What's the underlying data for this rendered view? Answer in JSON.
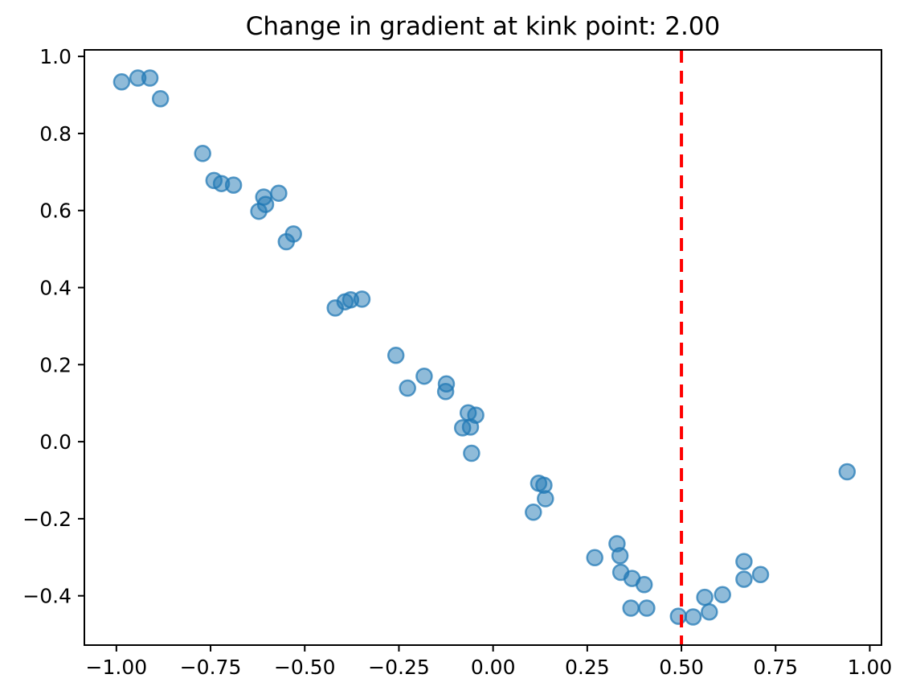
{
  "figure": {
    "background": "#ffffff"
  },
  "chart_data": {
    "type": "scatter",
    "title": "Change in gradient at kink point: 2.00",
    "xlabel": "",
    "ylabel": "",
    "xlim": [
      -1.085,
      1.031
    ],
    "ylim": [
      -0.528,
      1.017
    ],
    "grid": false,
    "legend": null,
    "xticks": {
      "values": [
        -1.0,
        -0.75,
        -0.5,
        -0.25,
        0.0,
        0.25,
        0.5,
        0.75,
        1.0
      ],
      "labels": [
        "−1.00",
        "−0.75",
        "−0.50",
        "−0.25",
        "0.00",
        "0.25",
        "0.50",
        "0.75",
        "1.00"
      ]
    },
    "yticks": {
      "values": [
        -0.4,
        -0.2,
        0.0,
        0.2,
        0.4,
        0.6,
        0.8,
        1.0
      ],
      "labels": [
        "−0.4",
        "−0.2",
        "0.0",
        "0.2",
        "0.4",
        "0.6",
        "0.8",
        "1.0"
      ]
    },
    "marker": {
      "shape": "circle",
      "color": "#1f77b4",
      "fill_opacity": 0.5,
      "edge_opacity": 0.72
    },
    "vline": {
      "x": 0.5,
      "color": "#ff0000",
      "style": "dashed"
    },
    "axis_color": "#000000",
    "points": [
      [
        -0.986,
        0.934
      ],
      [
        -0.943,
        0.944
      ],
      [
        -0.911,
        0.944
      ],
      [
        -0.883,
        0.89
      ],
      [
        -0.771,
        0.748
      ],
      [
        -0.741,
        0.678
      ],
      [
        -0.721,
        0.67
      ],
      [
        -0.689,
        0.666
      ],
      [
        -0.622,
        0.598
      ],
      [
        -0.609,
        0.635
      ],
      [
        -0.604,
        0.616
      ],
      [
        -0.569,
        0.645
      ],
      [
        -0.549,
        0.519
      ],
      [
        -0.53,
        0.539
      ],
      [
        -0.419,
        0.347
      ],
      [
        -0.393,
        0.363
      ],
      [
        -0.378,
        0.368
      ],
      [
        -0.348,
        0.37
      ],
      [
        -0.258,
        0.224
      ],
      [
        -0.227,
        0.139
      ],
      [
        -0.183,
        0.17
      ],
      [
        -0.126,
        0.13
      ],
      [
        -0.124,
        0.15
      ],
      [
        -0.081,
        0.036
      ],
      [
        -0.066,
        0.075
      ],
      [
        -0.06,
        0.038
      ],
      [
        -0.057,
        -0.03
      ],
      [
        -0.046,
        0.069
      ],
      [
        0.107,
        -0.183
      ],
      [
        0.121,
        -0.108
      ],
      [
        0.135,
        -0.113
      ],
      [
        0.139,
        -0.148
      ],
      [
        0.27,
        -0.301
      ],
      [
        0.329,
        -0.265
      ],
      [
        0.337,
        -0.296
      ],
      [
        0.339,
        -0.339
      ],
      [
        0.369,
        -0.355
      ],
      [
        0.366,
        -0.432
      ],
      [
        0.401,
        -0.371
      ],
      [
        0.408,
        -0.432
      ],
      [
        0.492,
        -0.453
      ],
      [
        0.531,
        -0.455
      ],
      [
        0.562,
        -0.404
      ],
      [
        0.574,
        -0.442
      ],
      [
        0.609,
        -0.397
      ],
      [
        0.666,
        -0.311
      ],
      [
        0.666,
        -0.357
      ],
      [
        0.71,
        -0.345
      ],
      [
        0.94,
        -0.078
      ]
    ]
  }
}
